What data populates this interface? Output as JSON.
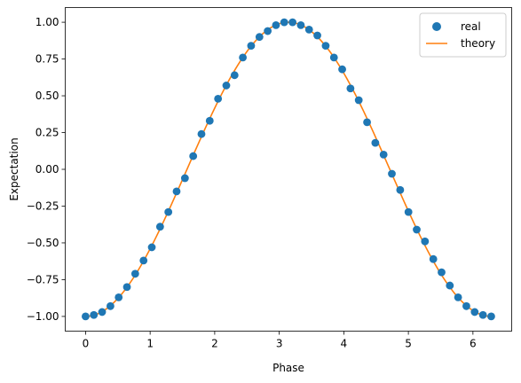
{
  "chart_data": {
    "type": "scatter",
    "title": "",
    "xlabel": "Phase",
    "ylabel": "Expectation",
    "xlim": [
      -0.315,
      6.6
    ],
    "ylim": [
      -1.1,
      1.1
    ],
    "xticks": [
      0,
      1,
      2,
      3,
      4,
      5,
      6
    ],
    "xtick_labels": [
      "0",
      "1",
      "2",
      "3",
      "4",
      "5",
      "6"
    ],
    "yticks": [
      -1.0,
      -0.75,
      -0.5,
      -0.25,
      0.0,
      0.25,
      0.5,
      0.75,
      1.0
    ],
    "ytick_labels": [
      "−1.00",
      "−0.75",
      "−0.50",
      "−0.25",
      "0.00",
      "0.25",
      "0.50",
      "0.75",
      "1.00"
    ],
    "grid": false,
    "legend_position": "top-right",
    "series": [
      {
        "name": "real",
        "kind": "scatter",
        "color": "#1f77b4",
        "x": [
          0.0,
          0.128,
          0.256,
          0.385,
          0.513,
          0.641,
          0.769,
          0.898,
          1.026,
          1.154,
          1.282,
          1.41,
          1.539,
          1.667,
          1.795,
          1.923,
          2.052,
          2.18,
          2.308,
          2.436,
          2.564,
          2.693,
          2.821,
          2.949,
          3.077,
          3.206,
          3.334,
          3.462,
          3.59,
          3.719,
          3.847,
          3.975,
          4.103,
          4.231,
          4.36,
          4.488,
          4.616,
          4.744,
          4.873,
          5.001,
          5.129,
          5.257,
          5.386,
          5.514,
          5.642,
          5.77,
          5.898,
          6.027,
          6.155,
          6.283
        ],
        "y": [
          -1.0,
          -0.99,
          -0.97,
          -0.93,
          -0.87,
          -0.8,
          -0.71,
          -0.62,
          -0.53,
          -0.39,
          -0.29,
          -0.15,
          -0.06,
          0.09,
          0.24,
          0.33,
          0.48,
          0.57,
          0.64,
          0.76,
          0.84,
          0.9,
          0.94,
          0.98,
          1.0,
          1.0,
          0.98,
          0.95,
          0.91,
          0.84,
          0.76,
          0.68,
          0.55,
          0.47,
          0.32,
          0.18,
          0.1,
          -0.03,
          -0.14,
          -0.29,
          -0.41,
          -0.49,
          -0.61,
          -0.7,
          -0.79,
          -0.87,
          -0.93,
          -0.97,
          -0.99,
          -1.0
        ]
      },
      {
        "name": "theory",
        "kind": "line",
        "color": "#ff7f0e",
        "function": "-cos(x)",
        "x_range": [
          0,
          6.283
        ]
      }
    ]
  }
}
